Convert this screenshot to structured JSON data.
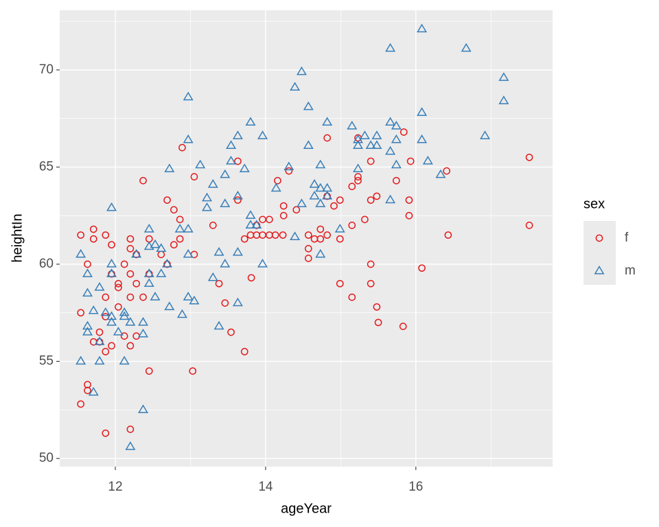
{
  "chart_data": {
    "type": "scatter",
    "x_label": "ageYear",
    "y_label": "heightIn",
    "legend_title": "sex",
    "xlim": [
      11.26,
      17.82
    ],
    "ylim": [
      49.58,
      73.07
    ],
    "xticks": [
      12,
      14,
      16
    ],
    "yticks": [
      50,
      55,
      60,
      65,
      70
    ],
    "grid": true,
    "legend_position": "right",
    "series": [
      {
        "name": "f",
        "color": "#E41A1C",
        "shape": "circle",
        "x": [
          11.54,
          11.54,
          11.54,
          11.63,
          11.63,
          11.63,
          11.71,
          11.71,
          11.71,
          11.79,
          11.79,
          11.87,
          11.87,
          11.87,
          11.87,
          11.87,
          11.95,
          11.95,
          11.95,
          12.04,
          12.04,
          12.04,
          12.12,
          12.12,
          12.2,
          12.2,
          12.2,
          12.2,
          12.2,
          12.2,
          12.28,
          12.28,
          12.28,
          12.37,
          12.37,
          12.45,
          12.45,
          12.45,
          12.61,
          12.69,
          12.69,
          12.78,
          12.78,
          12.86,
          12.86,
          12.89,
          13.03,
          13.05,
          13.05,
          13.3,
          13.38,
          13.46,
          13.54,
          13.63,
          13.63,
          13.72,
          13.72,
          13.8,
          13.81,
          13.88,
          13.88,
          13.96,
          13.96,
          14.05,
          14.05,
          14.13,
          14.16,
          14.23,
          14.24,
          14.24,
          14.31,
          14.41,
          14.57,
          14.57,
          14.57,
          14.65,
          14.73,
          14.73,
          14.82,
          14.82,
          14.82,
          14.91,
          14.99,
          14.99,
          14.99,
          15.15,
          15.15,
          15.15,
          15.23,
          15.23,
          15.23,
          15.32,
          15.4,
          15.4,
          15.4,
          15.4,
          15.48,
          15.48,
          15.5,
          15.74,
          15.83,
          15.84,
          15.91,
          15.91,
          15.93,
          16.08,
          16.41,
          16.43,
          17.51,
          17.51
        ],
        "values": [
          61.5,
          57.5,
          52.8,
          60.0,
          53.8,
          53.5,
          61.8,
          61.3,
          56.0,
          56.5,
          56.0,
          61.5,
          58.3,
          57.3,
          55.5,
          51.3,
          61.0,
          59.5,
          55.8,
          59.0,
          58.8,
          57.8,
          60.0,
          56.3,
          61.3,
          60.8,
          59.5,
          58.3,
          55.8,
          51.5,
          60.5,
          59.0,
          56.3,
          64.3,
          58.3,
          61.3,
          59.5,
          54.5,
          60.5,
          63.3,
          60.0,
          62.8,
          61.0,
          62.3,
          61.3,
          66.0,
          54.5,
          64.5,
          60.5,
          62.0,
          59.0,
          58.0,
          56.5,
          65.3,
          63.3,
          55.5,
          61.3,
          61.5,
          59.3,
          62.0,
          61.5,
          62.3,
          61.5,
          61.5,
          62.3,
          61.5,
          64.3,
          61.5,
          63.0,
          62.5,
          64.8,
          62.8,
          61.5,
          60.8,
          60.3,
          61.3,
          61.8,
          61.3,
          63.5,
          61.5,
          66.5,
          63.0,
          59.0,
          61.3,
          63.3,
          58.3,
          64.0,
          62.0,
          64.3,
          64.5,
          66.5,
          62.3,
          60.0,
          59.0,
          63.3,
          65.3,
          63.5,
          57.8,
          57.0,
          64.3,
          56.8,
          66.8,
          63.3,
          62.5,
          65.3,
          59.8,
          64.8,
          61.5,
          65.5,
          62.0
        ]
      },
      {
        "name": "m",
        "color": "#377EB8",
        "shape": "triangle",
        "x": [
          11.54,
          11.54,
          11.63,
          11.63,
          11.63,
          11.63,
          11.71,
          11.71,
          11.79,
          11.79,
          11.79,
          11.87,
          11.95,
          11.95,
          11.95,
          11.95,
          11.95,
          12.04,
          12.12,
          12.12,
          12.12,
          12.2,
          12.2,
          12.28,
          12.37,
          12.37,
          12.37,
          12.45,
          12.45,
          12.45,
          12.45,
          12.53,
          12.53,
          12.61,
          12.61,
          12.69,
          12.72,
          12.72,
          12.86,
          12.89,
          12.97,
          12.97,
          12.97,
          12.97,
          12.97,
          13.05,
          13.13,
          13.22,
          13.22,
          13.3,
          13.3,
          13.38,
          13.38,
          13.46,
          13.46,
          13.46,
          13.54,
          13.54,
          13.63,
          13.63,
          13.63,
          13.63,
          13.72,
          13.8,
          13.8,
          13.8,
          13.88,
          13.96,
          13.96,
          14.14,
          14.31,
          14.39,
          14.39,
          14.48,
          14.48,
          14.57,
          14.57,
          14.65,
          14.65,
          14.73,
          14.73,
          14.73,
          14.73,
          14.82,
          14.82,
          14.82,
          14.99,
          15.15,
          15.23,
          15.23,
          15.23,
          15.32,
          15.4,
          15.48,
          15.48,
          15.66,
          15.66,
          15.66,
          15.66,
          15.74,
          15.74,
          15.74,
          16.08,
          16.08,
          16.08,
          16.16,
          16.33,
          16.67,
          16.92,
          17.17,
          17.17
        ],
        "values": [
          60.5,
          55.0,
          58.5,
          56.5,
          56.8,
          59.5,
          53.4,
          57.6,
          55.0,
          56.0,
          58.8,
          57.5,
          62.9,
          60.0,
          59.5,
          57.3,
          57.0,
          56.5,
          55.0,
          57.5,
          57.3,
          57.0,
          50.6,
          60.5,
          52.5,
          57.0,
          56.4,
          61.8,
          60.9,
          59.5,
          59.0,
          61.0,
          58.3,
          59.5,
          60.8,
          60.0,
          64.9,
          57.8,
          61.8,
          57.4,
          68.6,
          66.4,
          61.8,
          60.5,
          58.3,
          58.1,
          65.1,
          63.4,
          62.9,
          64.1,
          59.3,
          60.6,
          56.8,
          64.6,
          63.1,
          60.0,
          66.1,
          65.3,
          66.6,
          60.6,
          58.0,
          63.5,
          64.9,
          62.5,
          67.3,
          62.0,
          62.0,
          66.6,
          60.0,
          63.9,
          65.0,
          61.4,
          69.1,
          69.9,
          63.1,
          68.1,
          66.1,
          64.1,
          63.5,
          65.1,
          63.9,
          63.1,
          60.5,
          67.3,
          63.9,
          63.5,
          61.8,
          67.1,
          64.9,
          66.1,
          66.4,
          66.6,
          66.1,
          66.1,
          66.6,
          71.1,
          67.3,
          65.8,
          63.3,
          67.1,
          65.1,
          66.4,
          72.1,
          67.8,
          66.4,
          65.3,
          64.6,
          71.1,
          66.6,
          69.6,
          68.4
        ]
      }
    ]
  }
}
